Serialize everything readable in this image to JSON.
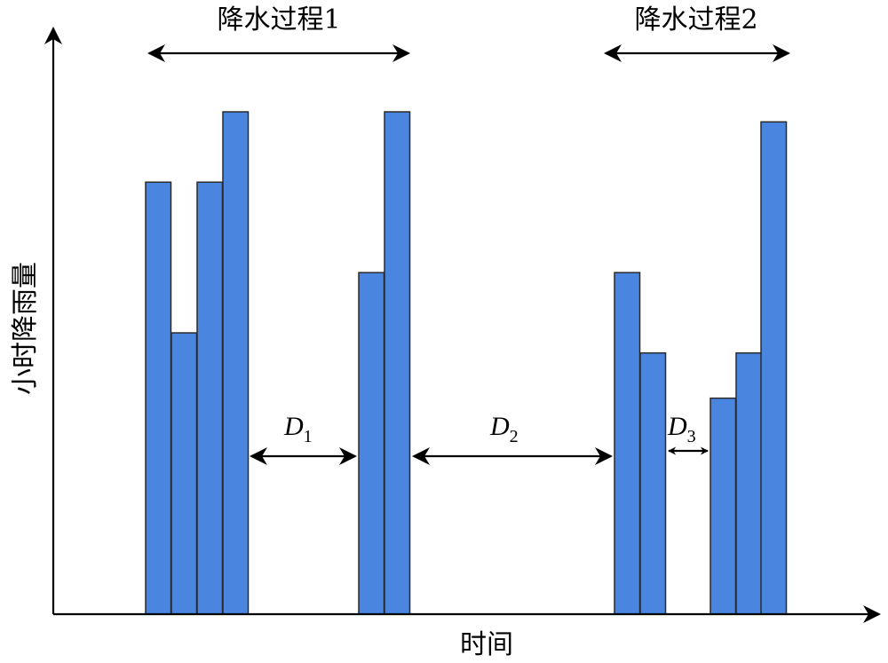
{
  "axes": {
    "y_label": "小时降雨量",
    "x_label": "时间"
  },
  "events": [
    {
      "label": "降水过程1"
    },
    {
      "label": "降水过程2"
    }
  ],
  "gaps": [
    {
      "letter": "D",
      "sub": "1"
    },
    {
      "letter": "D",
      "sub": "2"
    },
    {
      "letter": "D",
      "sub": "3"
    }
  ],
  "bars": [
    {
      "value": 0.86
    },
    {
      "value": 0.56
    },
    {
      "value": 0.86
    },
    {
      "value": 1.0
    },
    {
      "value": 0.68
    },
    {
      "value": 1.0
    },
    {
      "value": 0.68
    },
    {
      "value": 0.52
    },
    {
      "value": 0.43
    },
    {
      "value": 0.52
    },
    {
      "value": 0.98
    }
  ],
  "colors": {
    "bar_fill": "#4a86e0",
    "bar_stroke": "#2a2a2a",
    "axis": "#000000"
  }
}
